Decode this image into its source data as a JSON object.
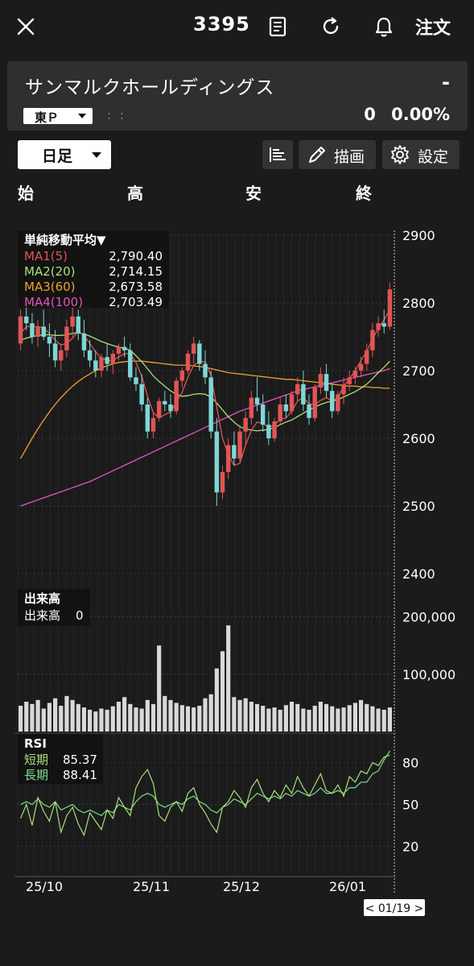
{
  "header": {
    "code": "3395",
    "order_label": "注文",
    "icons": [
      "close-icon",
      "document-icon",
      "refresh-icon",
      "bell-icon"
    ]
  },
  "stock": {
    "name": "サンマルクホールディングス",
    "price": "-",
    "market": "東Ｐ",
    "time": ": :",
    "change": "0",
    "change_pct": "0.00%"
  },
  "toolbar": {
    "period": "日足",
    "draw_label": "描画",
    "settings_label": "設定"
  },
  "ohlc": {
    "open": "始",
    "high": "高",
    "low": "安",
    "close": "終"
  },
  "chart_data": {
    "type": "candlestick",
    "price_axis": {
      "ticks": [
        2900,
        2800,
        2700,
        2600,
        2500,
        2400
      ],
      "range": [
        2400,
        2900
      ]
    },
    "x_ticks": [
      "25/10",
      "25/11",
      "25/12",
      "26/01"
    ],
    "cursor_label": "< 01/19 >",
    "ma_legend": {
      "title": "単純移動平均▼",
      "items": [
        {
          "name": "MA1(5)",
          "value": "2,790.40",
          "color": "#e05555"
        },
        {
          "name": "MA2(20)",
          "value": "2,714.15",
          "color": "#a8e07a"
        },
        {
          "name": "MA3(60)",
          "value": "2,673.58",
          "color": "#f0a030"
        },
        {
          "name": "MA4(100)",
          "value": "2,703.49",
          "color": "#e055c0"
        }
      ]
    },
    "volume": {
      "title": "出来高",
      "label": "出来高",
      "value": "0",
      "ticks": [
        "200,000",
        "100,000"
      ],
      "range": [
        0,
        250000
      ]
    },
    "rsi": {
      "title": "RSI",
      "short_label": "短期",
      "short_value": "85.37",
      "long_label": "長期",
      "long_value": "88.41",
      "ticks": [
        "80",
        "50",
        "20"
      ],
      "range": [
        0,
        100
      ],
      "short_color": "#a8e07a",
      "long_color": "#7ee08a"
    },
    "colors": {
      "up": "#e05555",
      "down": "#7fd6d6"
    },
    "candles": [
      [
        2740,
        2790,
        2730,
        2780
      ],
      [
        2780,
        2800,
        2760,
        2770
      ],
      [
        2770,
        2785,
        2740,
        2750
      ],
      [
        2750,
        2775,
        2735,
        2765
      ],
      [
        2765,
        2790,
        2745,
        2750
      ],
      [
        2750,
        2770,
        2720,
        2740
      ],
      [
        2740,
        2760,
        2705,
        2715
      ],
      [
        2715,
        2740,
        2700,
        2730
      ],
      [
        2730,
        2775,
        2720,
        2765
      ],
      [
        2765,
        2800,
        2750,
        2780
      ],
      [
        2780,
        2790,
        2745,
        2755
      ],
      [
        2755,
        2775,
        2720,
        2730
      ],
      [
        2730,
        2745,
        2705,
        2715
      ],
      [
        2715,
        2730,
        2690,
        2700
      ],
      [
        2700,
        2725,
        2690,
        2720
      ],
      [
        2720,
        2740,
        2700,
        2710
      ],
      [
        2710,
        2730,
        2695,
        2725
      ],
      [
        2725,
        2740,
        2715,
        2735
      ],
      [
        2735,
        2750,
        2720,
        2730
      ],
      [
        2730,
        2740,
        2685,
        2690
      ],
      [
        2690,
        2705,
        2670,
        2680
      ],
      [
        2680,
        2695,
        2640,
        2650
      ],
      [
        2650,
        2660,
        2600,
        2610
      ],
      [
        2610,
        2640,
        2600,
        2630
      ],
      [
        2630,
        2660,
        2625,
        2655
      ],
      [
        2655,
        2670,
        2640,
        2650
      ],
      [
        2650,
        2665,
        2630,
        2640
      ],
      [
        2640,
        2690,
        2635,
        2685
      ],
      [
        2685,
        2705,
        2675,
        2700
      ],
      [
        2700,
        2730,
        2695,
        2725
      ],
      [
        2725,
        2750,
        2710,
        2740
      ],
      [
        2740,
        2745,
        2700,
        2710
      ],
      [
        2710,
        2730,
        2680,
        2690
      ],
      [
        2690,
        2700,
        2600,
        2610
      ],
      [
        2610,
        2630,
        2500,
        2520
      ],
      [
        2520,
        2560,
        2510,
        2550
      ],
      [
        2550,
        2600,
        2540,
        2590
      ],
      [
        2590,
        2610,
        2560,
        2570
      ],
      [
        2570,
        2620,
        2565,
        2610
      ],
      [
        2610,
        2640,
        2590,
        2630
      ],
      [
        2630,
        2670,
        2620,
        2660
      ],
      [
        2660,
        2690,
        2640,
        2650
      ],
      [
        2650,
        2665,
        2610,
        2620
      ],
      [
        2620,
        2640,
        2590,
        2600
      ],
      [
        2600,
        2630,
        2595,
        2625
      ],
      [
        2625,
        2660,
        2620,
        2650
      ],
      [
        2650,
        2665,
        2630,
        2640
      ],
      [
        2640,
        2670,
        2635,
        2665
      ],
      [
        2665,
        2690,
        2655,
        2680
      ],
      [
        2680,
        2700,
        2640,
        2650
      ],
      [
        2650,
        2665,
        2620,
        2630
      ],
      [
        2630,
        2680,
        2625,
        2675
      ],
      [
        2675,
        2705,
        2665,
        2695
      ],
      [
        2695,
        2710,
        2660,
        2670
      ],
      [
        2670,
        2680,
        2630,
        2640
      ],
      [
        2640,
        2670,
        2635,
        2665
      ],
      [
        2665,
        2690,
        2650,
        2680
      ],
      [
        2680,
        2700,
        2670,
        2690
      ],
      [
        2690,
        2705,
        2680,
        2700
      ],
      [
        2700,
        2720,
        2690,
        2710
      ],
      [
        2710,
        2740,
        2700,
        2730
      ],
      [
        2730,
        2770,
        2720,
        2760
      ],
      [
        2760,
        2780,
        2750,
        2770
      ],
      [
        2770,
        2790,
        2755,
        2765
      ],
      [
        2765,
        2830,
        2760,
        2820
      ]
    ],
    "ma5": [
      2755,
      2765,
      2765,
      2765,
      2763,
      2755,
      2745,
      2738,
      2740,
      2748,
      2758,
      2752,
      2740,
      2728,
      2718,
      2715,
      2715,
      2720,
      2725,
      2725,
      2712,
      2692,
      2662,
      2638,
      2630,
      2635,
      2639,
      2653,
      2668,
      2690,
      2708,
      2713,
      2713,
      2693,
      2646,
      2600,
      2576,
      2560,
      2563,
      2590,
      2612,
      2624,
      2622,
      2616,
      2620,
      2628,
      2630,
      2640,
      2655,
      2660,
      2651,
      2650,
      2656,
      2660,
      2655,
      2660,
      2677,
      2688,
      2700,
      2715,
      2728,
      2747,
      2762,
      2775,
      2790
    ],
    "ma20": [
      2745,
      2748,
      2750,
      2752,
      2753,
      2753,
      2752,
      2752,
      2753,
      2755,
      2756,
      2754,
      2751,
      2747,
      2743,
      2740,
      2737,
      2735,
      2733,
      2730,
      2722,
      2713,
      2703,
      2692,
      2684,
      2677,
      2670,
      2665,
      2662,
      2663,
      2665,
      2666,
      2665,
      2661,
      2652,
      2642,
      2632,
      2624,
      2617,
      2614,
      2612,
      2611,
      2612,
      2613,
      2616,
      2620,
      2624,
      2627,
      2632,
      2637,
      2642,
      2646,
      2650,
      2653,
      2655,
      2657,
      2661,
      2665,
      2669,
      2674,
      2680,
      2688,
      2697,
      2705,
      2714
    ],
    "ma60": [
      2570,
      2585,
      2600,
      2614,
      2627,
      2639,
      2650,
      2660,
      2669,
      2677,
      2684,
      2690,
      2695,
      2700,
      2704,
      2707,
      2710,
      2712,
      2713,
      2714,
      2714,
      2714,
      2713,
      2712,
      2711,
      2710,
      2709,
      2708,
      2708,
      2708,
      2707,
      2706,
      2705,
      2703,
      2701,
      2699,
      2697,
      2696,
      2695,
      2694,
      2693,
      2692,
      2691,
      2690,
      2689,
      2688,
      2687,
      2687,
      2686,
      2685,
      2684,
      2683,
      2682,
      2681,
      2680,
      2679,
      2678,
      2677,
      2677,
      2676,
      2676,
      2675,
      2675,
      2674,
      2674
    ],
    "ma100": [
      2500,
      2503,
      2506,
      2509,
      2512,
      2515,
      2518,
      2521,
      2524,
      2527,
      2530,
      2533,
      2536,
      2540,
      2544,
      2548,
      2552,
      2556,
      2560,
      2564,
      2568,
      2572,
      2576,
      2580,
      2584,
      2588,
      2592,
      2596,
      2600,
      2604,
      2608,
      2612,
      2616,
      2620,
      2624,
      2628,
      2632,
      2636,
      2640,
      2643,
      2646,
      2649,
      2652,
      2655,
      2658,
      2661,
      2664,
      2667,
      2670,
      2672,
      2674,
      2676,
      2678,
      2680,
      2682,
      2684,
      2686,
      2688,
      2690,
      2692,
      2694,
      2696,
      2698,
      2700,
      2703
    ],
    "volumes": [
      45,
      52,
      48,
      55,
      40,
      50,
      58,
      45,
      62,
      55,
      48,
      42,
      38,
      35,
      40,
      38,
      44,
      52,
      60,
      48,
      42,
      40,
      55,
      48,
      150,
      62,
      55,
      50,
      46,
      44,
      42,
      45,
      58,
      65,
      110,
      140,
      185,
      60,
      55,
      58,
      52,
      48,
      45,
      40,
      42,
      38,
      46,
      52,
      48,
      40,
      38,
      45,
      52,
      48,
      44,
      40,
      42,
      46,
      50,
      55,
      48,
      44,
      40,
      38,
      42
    ],
    "rsi_short": [
      40,
      50,
      35,
      55,
      45,
      38,
      52,
      30,
      42,
      48,
      36,
      28,
      44,
      38,
      32,
      46,
      40,
      55,
      48,
      42,
      62,
      70,
      75,
      65,
      42,
      38,
      48,
      52,
      45,
      58,
      62,
      50,
      44,
      36,
      30,
      48,
      52,
      60,
      55,
      48,
      62,
      68,
      58,
      52,
      60,
      55,
      64,
      58,
      70,
      62,
      56,
      64,
      72,
      60,
      58,
      64,
      56,
      70,
      66,
      74,
      72,
      80,
      78,
      84,
      85.37
    ],
    "rsi_long": [
      50,
      52,
      50,
      54,
      50,
      48,
      52,
      46,
      48,
      50,
      46,
      44,
      46,
      44,
      42,
      46,
      44,
      50,
      48,
      46,
      52,
      56,
      58,
      56,
      50,
      48,
      50,
      52,
      50,
      54,
      56,
      52,
      50,
      46,
      44,
      48,
      50,
      54,
      52,
      50,
      54,
      58,
      56,
      54,
      56,
      54,
      58,
      56,
      60,
      58,
      56,
      58,
      62,
      58,
      58,
      60,
      58,
      62,
      62,
      66,
      66,
      72,
      74,
      82,
      88.41
    ]
  }
}
